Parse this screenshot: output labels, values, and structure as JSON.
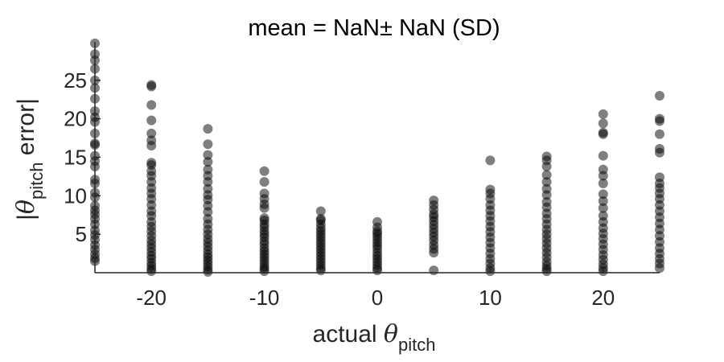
{
  "chart_data": {
    "type": "scatter",
    "title": "mean = NaN± NaN (SD)",
    "xlabel": {
      "prefix": "actual ",
      "symbol": "θ",
      "subscript": "pitch"
    },
    "ylabel": {
      "open_bar": "|",
      "symbol": "θ",
      "subscript": "pitch",
      "suffix": " error|"
    },
    "xlim": [
      -25,
      25
    ],
    "ylim": [
      0,
      30
    ],
    "xticks": [
      -20,
      -10,
      0,
      10,
      20
    ],
    "xtick_labels": [
      "-20",
      "-10",
      "0",
      "10",
      "20"
    ],
    "yticks": [
      5,
      10,
      15,
      20,
      25
    ],
    "ytick_labels": [
      "5",
      "10",
      "15",
      "20",
      "25"
    ],
    "grid": false,
    "marker_color": "#000000",
    "marker_alpha": 0.5,
    "points": [
      {
        "x": -25,
        "y": [
          29.8,
          28.4,
          27.6,
          26.5,
          25.0,
          24.0,
          22.6,
          21.0,
          20.2,
          19.6,
          18.1,
          16.8,
          16.6,
          15.2,
          14.5,
          13.8,
          12.1,
          11.6,
          10.4,
          9.8,
          8.7,
          8.1,
          7.6,
          7.0,
          6.3,
          5.5,
          4.9,
          4.3,
          3.6,
          3.0,
          2.4,
          1.9,
          1.5
        ]
      },
      {
        "x": -20,
        "y": [
          24.4,
          24.2,
          21.8,
          19.8,
          18.1,
          17.2,
          16.5,
          14.3,
          14.0,
          13.2,
          12.6,
          11.8,
          11.0,
          10.3,
          9.6,
          8.8,
          8.0,
          7.4,
          6.6,
          6.0,
          5.4,
          4.8,
          4.2,
          3.7,
          3.2,
          2.7,
          2.2,
          1.8,
          1.3,
          0.9,
          0.5,
          0.2
        ]
      },
      {
        "x": -15,
        "y": [
          18.7,
          16.7,
          15.3,
          14.4,
          13.4,
          12.6,
          11.8,
          10.9,
          10.1,
          9.5,
          8.7,
          7.9,
          7.0,
          6.3,
          5.6,
          5.0,
          4.4,
          3.9,
          3.4,
          2.9,
          2.4,
          2.0,
          1.6,
          1.2,
          0.8,
          0.4,
          0.1
        ]
      },
      {
        "x": -10,
        "y": [
          13.2,
          11.8,
          10.3,
          9.6,
          8.9,
          8.4,
          7.1,
          6.8,
          6.3,
          5.9,
          5.4,
          5.0,
          4.6,
          4.1,
          3.7,
          3.2,
          2.8,
          2.4,
          2.0,
          1.6,
          1.2,
          0.8,
          0.5,
          0.2
        ]
      },
      {
        "x": -5,
        "y": [
          8.0,
          7.0,
          6.8,
          6.3,
          5.8,
          5.4,
          5.0,
          4.6,
          4.2,
          3.8,
          3.4,
          3.0,
          2.6,
          2.2,
          1.8,
          1.4,
          1.0,
          0.6,
          0.3
        ]
      },
      {
        "x": 0,
        "y": [
          6.6,
          5.9,
          5.4,
          5.1,
          4.7,
          4.3,
          3.9,
          3.5,
          3.1,
          2.6,
          2.2,
          1.8,
          1.4,
          1.0,
          0.6,
          0.3
        ]
      },
      {
        "x": 5,
        "y": [
          9.4,
          8.8,
          8.2,
          7.6,
          7.2,
          6.7,
          6.2,
          5.7,
          5.2,
          4.7,
          4.2,
          3.6,
          3.1,
          2.6,
          0.3
        ]
      },
      {
        "x": 10,
        "y": [
          14.6,
          10.8,
          10.3,
          9.6,
          8.8,
          8.1,
          7.4,
          6.7,
          6.0,
          5.3,
          4.6,
          3.9,
          3.2,
          2.5,
          1.8,
          1.2,
          0.6,
          0.2
        ]
      },
      {
        "x": 15,
        "y": [
          15.1,
          14.6,
          13.8,
          12.7,
          11.8,
          10.9,
          10.1,
          9.2,
          8.5,
          7.7,
          7.0,
          6.3,
          5.6,
          5.0,
          4.4,
          3.8,
          3.2,
          2.6,
          2.0,
          1.4,
          0.9,
          0.5,
          0.2
        ]
      },
      {
        "x": 20,
        "y": [
          20.6,
          19.4,
          18.2,
          18.0,
          15.2,
          13.4,
          12.6,
          11.6,
          10.2,
          9.3,
          8.4,
          7.4,
          6.6,
          5.8,
          5.1,
          4.4,
          3.7,
          3.0,
          2.3,
          1.7,
          1.1,
          0.6,
          0.2
        ]
      },
      {
        "x": 25,
        "y": [
          23.0,
          20.0,
          19.7,
          18.0,
          16.1,
          15.6,
          12.4,
          11.6,
          11.0,
          10.3,
          9.6,
          8.8,
          8.0,
          7.2,
          6.4,
          5.6,
          4.8,
          4.0,
          3.2,
          2.5,
          1.8,
          1.2,
          0.6
        ]
      }
    ]
  }
}
